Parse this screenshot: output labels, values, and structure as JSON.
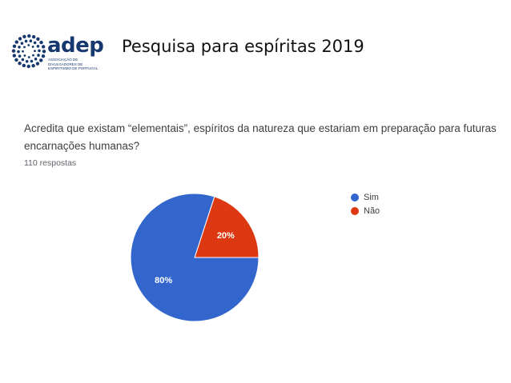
{
  "header": {
    "logo_text": "adep",
    "logo_subtitle": "Associação de Divulgadores de Espiritismo de Portugal",
    "title": "Pesquisa para espíritas  2019"
  },
  "question": {
    "text": "Acredita que existam “elementais”, espíritos da natureza que estariam em preparação para futuras encarnações humanas?",
    "responses": "110 respostas"
  },
  "colors": {
    "brand": "#16386e",
    "sim": "#3366cc",
    "nao": "#dc3912"
  },
  "chart_data": {
    "type": "pie",
    "title": "",
    "slices": [
      {
        "label": "Sim",
        "value": 80,
        "display": "80%",
        "color": "#3366cc"
      },
      {
        "label": "Não",
        "value": 20,
        "display": "20%",
        "color": "#dc3912"
      }
    ],
    "legend_position": "right"
  }
}
